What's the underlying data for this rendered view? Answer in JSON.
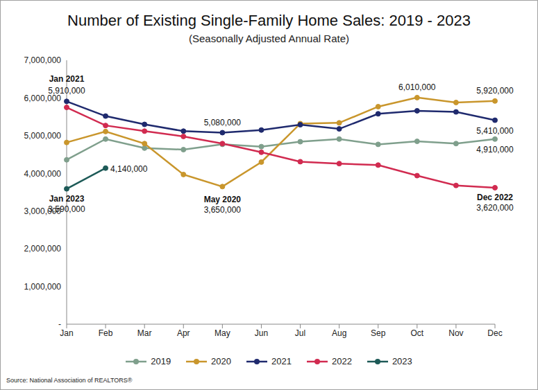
{
  "chart_data": {
    "type": "line",
    "title": "Number of Existing Single-Family Home Sales: 2019 - 2023",
    "subtitle": "(Seasonally Adjusted Annual Rate)",
    "source": "Source: National Association of REALTORS®",
    "categories": [
      "Jan",
      "Feb",
      "Mar",
      "Apr",
      "May",
      "Jun",
      "Jul",
      "Aug",
      "Sep",
      "Oct",
      "Nov",
      "Dec"
    ],
    "series": [
      {
        "name": "2019",
        "color": "#7f9f8c",
        "values": [
          4360000,
          4910000,
          4670000,
          4630000,
          4770000,
          4710000,
          4840000,
          4910000,
          4770000,
          4850000,
          4790000,
          4910000
        ]
      },
      {
        "name": "2020",
        "color": "#c9962c",
        "values": [
          4820000,
          5110000,
          4790000,
          3970000,
          3650000,
          4300000,
          5320000,
          5340000,
          5770000,
          6010000,
          5880000,
          5920000
        ]
      },
      {
        "name": "2021",
        "color": "#1f2a6e",
        "values": [
          5910000,
          5520000,
          5300000,
          5120000,
          5080000,
          5150000,
          5290000,
          5180000,
          5580000,
          5660000,
          5630000,
          5410000
        ]
      },
      {
        "name": "2022",
        "color": "#d12b50",
        "values": [
          5750000,
          5270000,
          5120000,
          4980000,
          4790000,
          4560000,
          4310000,
          4260000,
          4220000,
          3940000,
          3680000,
          3620000
        ]
      },
      {
        "name": "2023",
        "color": "#1d5a57",
        "values": [
          3590000,
          4140000,
          null,
          null,
          null,
          null,
          null,
          null,
          null,
          null,
          null,
          null
        ]
      }
    ],
    "ylim": [
      0,
      7000000
    ],
    "yticks": [
      {
        "value": 0,
        "label": "-"
      },
      {
        "value": 1000000,
        "label": "1,000,000"
      },
      {
        "value": 2000000,
        "label": "2,000,000"
      },
      {
        "value": 3000000,
        "label": "3,000,000"
      },
      {
        "value": 4000000,
        "label": "4,000,000"
      },
      {
        "value": 5000000,
        "label": "5,000,000"
      },
      {
        "value": 6000000,
        "label": "6,000,000"
      },
      {
        "value": 7000000,
        "label": "7,000,000"
      }
    ],
    "grid": false,
    "legend": "bottom",
    "marker": "circle",
    "line_style": "solid",
    "annotations": [
      {
        "series": "2021",
        "category": "Jan",
        "title": "Jan 2021",
        "label": "5,910,000"
      },
      {
        "series": "2021",
        "category": "May",
        "label": "5,080,000"
      },
      {
        "series": "2020",
        "category": "Oct",
        "label": "6,010,000"
      },
      {
        "series": "2020",
        "category": "Dec",
        "label": "5,920,000"
      },
      {
        "series": "2021",
        "category": "Dec",
        "label": "5,410,000"
      },
      {
        "series": "2019",
        "category": "Dec",
        "label": "4,910,000"
      },
      {
        "series": "2023",
        "category": "Feb",
        "label": "4,140,000"
      },
      {
        "series": "2023",
        "category": "Jan",
        "title": "Jan 2023",
        "label": "3,590,000"
      },
      {
        "series": "2020",
        "category": "May",
        "title": "May 2020",
        "label": "3,650,000"
      },
      {
        "series": "2022",
        "category": "Dec",
        "title": "Dec 2022",
        "label": "3,620,000"
      }
    ]
  }
}
